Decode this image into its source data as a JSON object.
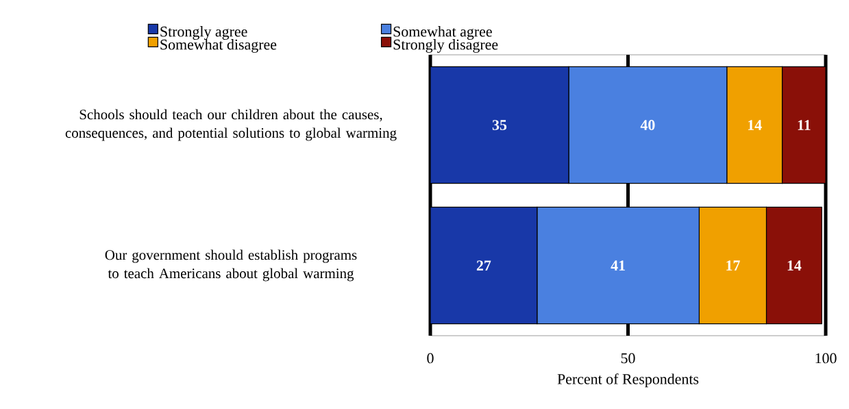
{
  "chart_data": {
    "type": "bar",
    "orientation": "horizontal",
    "stacked": true,
    "categories": [
      "Schools should teach our children about the causes, consequences, and potential solutions to global warming",
      "Our government should establish programs to teach Americans about global warming"
    ],
    "series": [
      {
        "name": "Strongly agree",
        "color": "#1838a8",
        "values": [
          35,
          27
        ]
      },
      {
        "name": "Somewhat agree",
        "color": "#4a80e0",
        "values": [
          40,
          41
        ]
      },
      {
        "name": "Somewhat disagree",
        "color": "#f0a000",
        "values": [
          14,
          17
        ]
      },
      {
        "name": "Strongly disagree",
        "color": "#8a1008",
        "values": [
          11,
          14
        ]
      }
    ],
    "xlim": [
      0,
      100
    ],
    "xticks": [
      0,
      50,
      100
    ],
    "xlabel": "Percent of Respondents",
    "grid": "x",
    "legend": "top",
    "data_labels": true
  }
}
